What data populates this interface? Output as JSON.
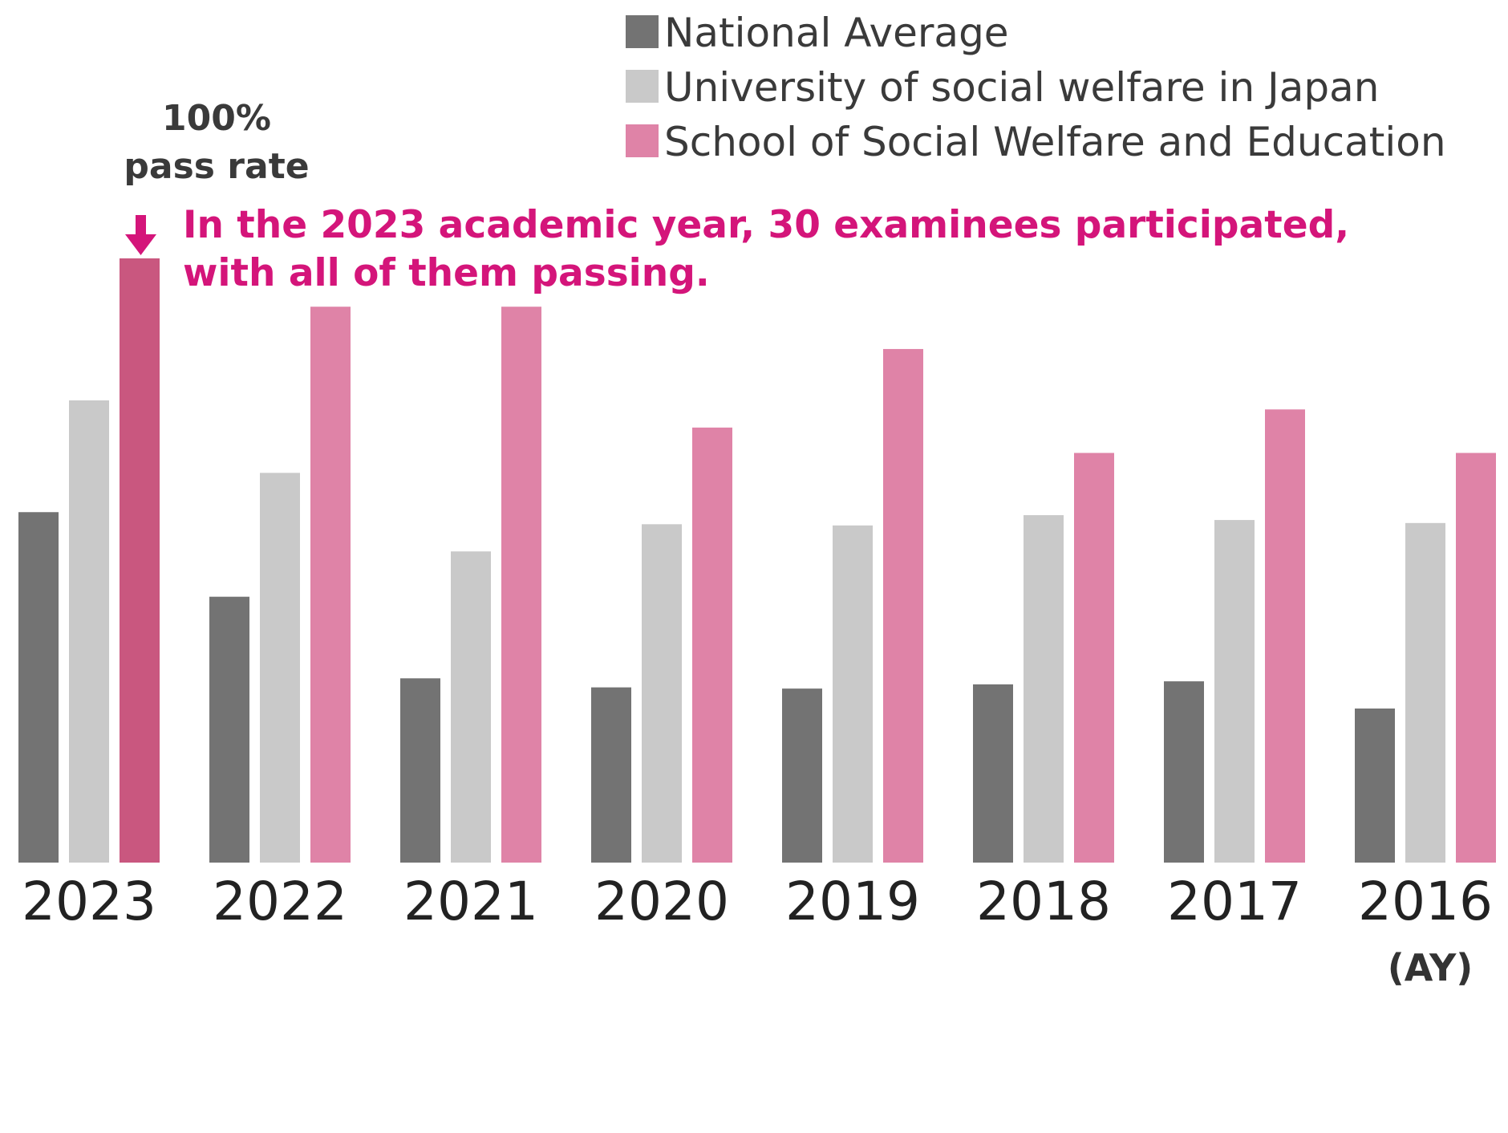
{
  "chart_data": {
    "type": "bar",
    "title": "",
    "xlabel": "(AY)",
    "ylabel": "",
    "ylim": [
      0,
      100
    ],
    "categories": [
      "2023",
      "2022",
      "2021",
      "2020",
      "2019",
      "2018",
      "2017",
      "2016"
    ],
    "series": [
      {
        "name": "National Average",
        "color": "#737373",
        "values": [
          58,
          44,
          30.5,
          29,
          28.8,
          29.5,
          30,
          25.5
        ]
      },
      {
        "name": "University of social welfare in Japan",
        "color": "#c9c9c9",
        "values": [
          76.5,
          64.5,
          51.5,
          56,
          55.8,
          57.5,
          56.7,
          56.2
        ]
      },
      {
        "name": "School of Social Welfare and Education",
        "color": "#df83a7",
        "highlight_color": "#c9577f",
        "values": [
          100,
          92,
          92,
          72,
          85,
          67.8,
          75,
          67.8
        ]
      }
    ],
    "annotations": {
      "pass_rate_label": [
        "100%",
        "pass rate"
      ],
      "note_lines": [
        "In the 2023 academic year, 30 examinees participated,",
        "with all of them passing."
      ],
      "note_color": "#d4157a"
    }
  }
}
